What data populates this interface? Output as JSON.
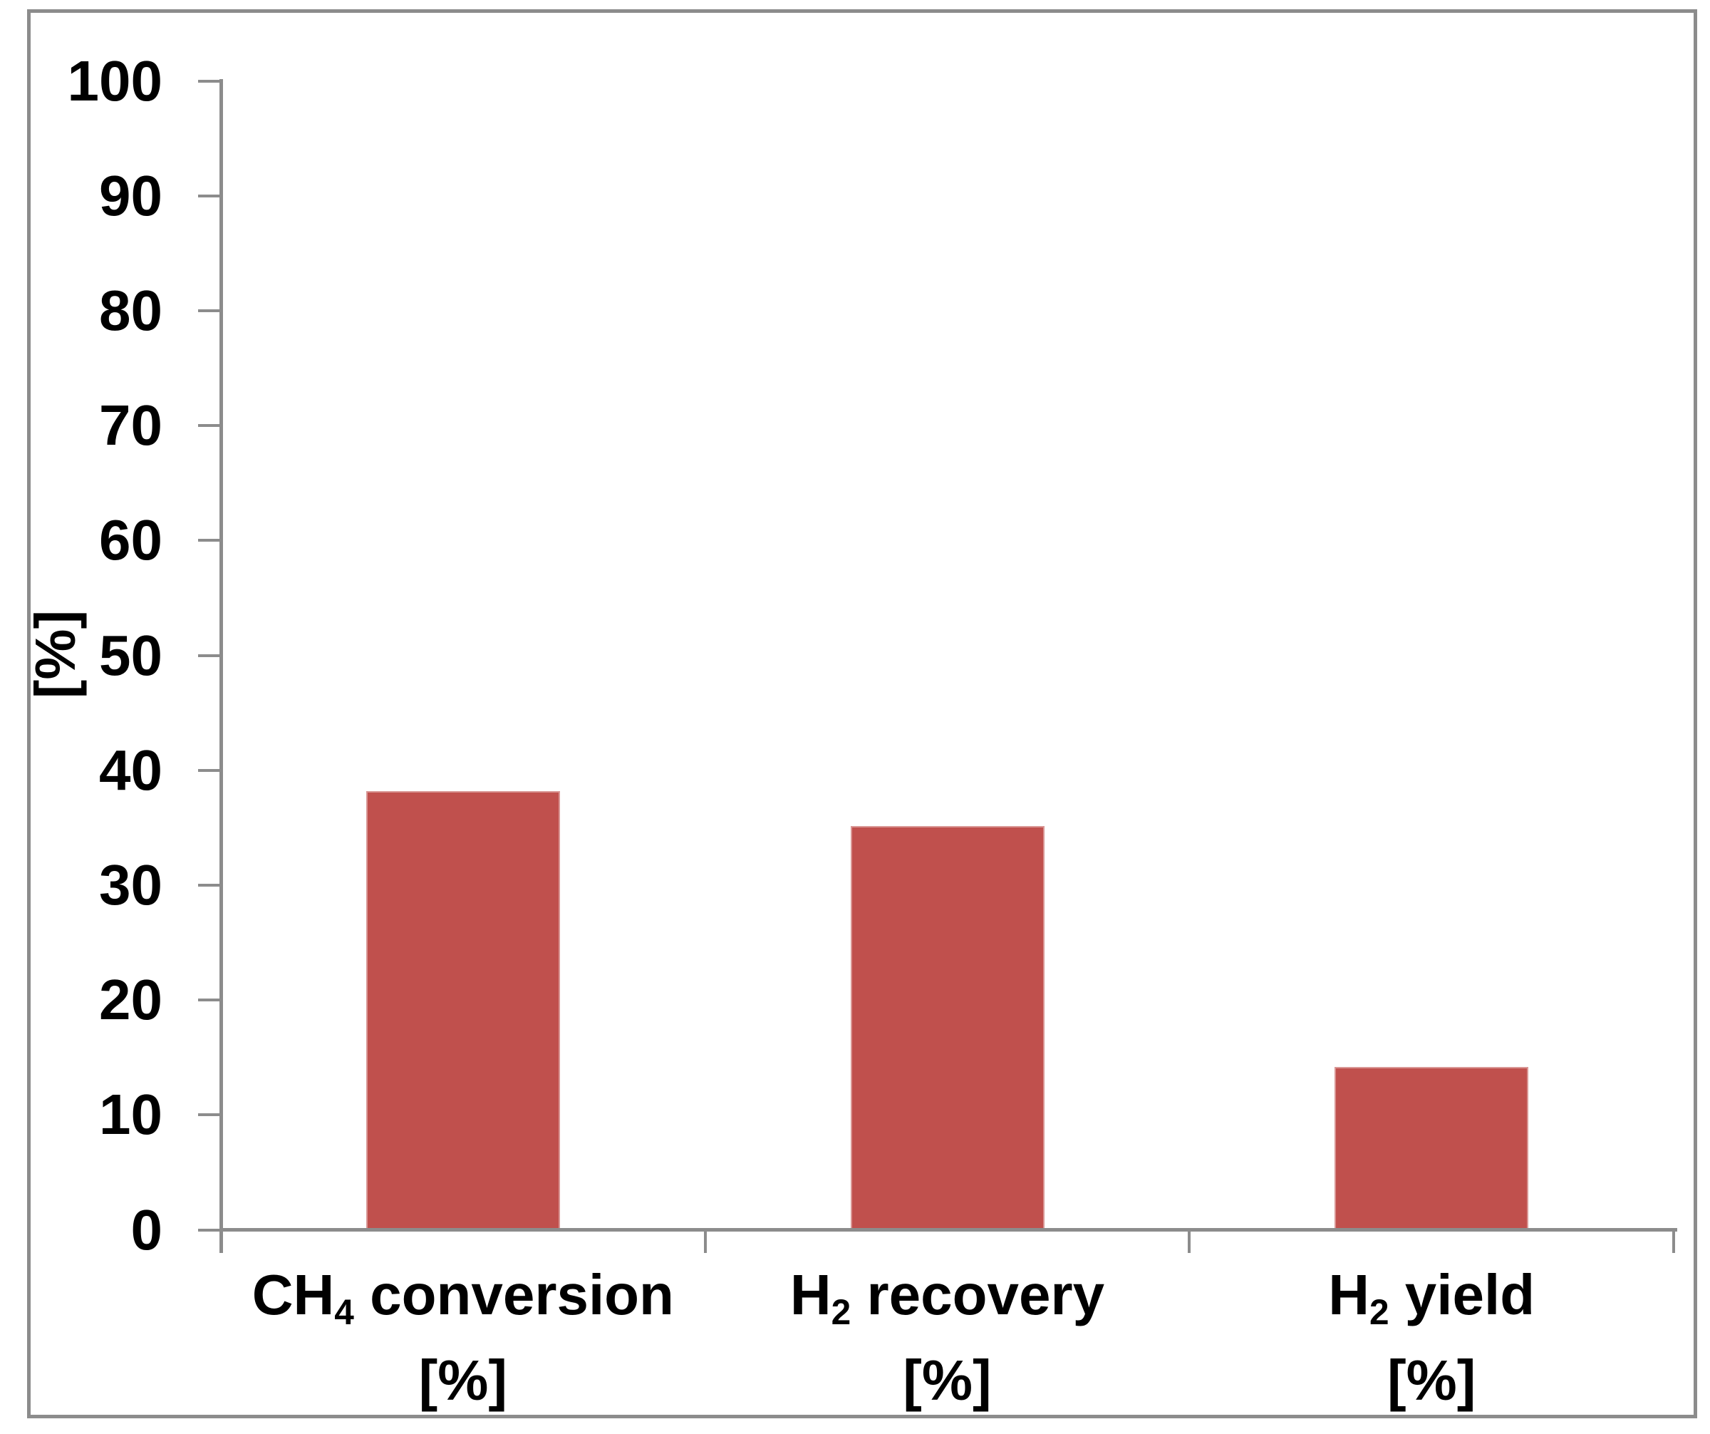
{
  "figure": {
    "background_color": "#ffffff",
    "frame_color": "#8c8c8c"
  },
  "chart_data": {
    "type": "bar",
    "categories": [
      "CH4 conversion [%]",
      "H2 recovery [%]",
      "H2 yield [%]"
    ],
    "categories_rich": [
      {
        "pre": "CH",
        "sub": "4",
        "post": " conversion",
        "unit": "[%]"
      },
      {
        "pre": "H",
        "sub": "2",
        "post": " recovery",
        "unit": "[%]"
      },
      {
        "pre": "H",
        "sub": "2",
        "post": " yield",
        "unit": "[%]"
      }
    ],
    "values": [
      38,
      35,
      14
    ],
    "ylabel": "[%]",
    "ylim": [
      0,
      100
    ],
    "ytick_step": 10,
    "ytick_labels": [
      "0",
      "10",
      "20",
      "30",
      "40",
      "50",
      "60",
      "70",
      "80",
      "90",
      "100"
    ],
    "grid": false,
    "legend": false,
    "bar_color": "#c0504d",
    "bar_border_color": "#d99694",
    "axis_color": "#8c8c8c",
    "text_color": "#000000"
  }
}
